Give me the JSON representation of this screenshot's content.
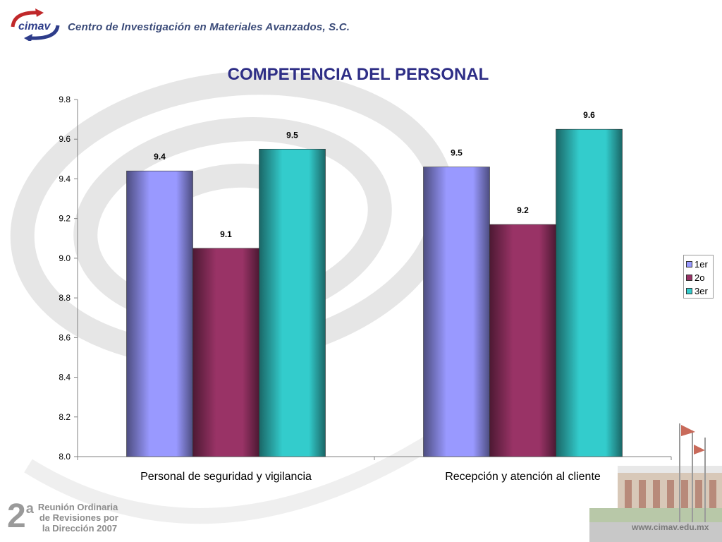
{
  "header": {
    "logo_text": "cimav",
    "org_name": "Centro de Investigación en Materiales Avanzados, S.C."
  },
  "footer": {
    "meeting_number": "2",
    "meeting_superscript": "a",
    "meeting_line1": "Reunión Ordinaria",
    "meeting_line2": "de Revisiones por",
    "meeting_line3": "la Dirección 2007",
    "website": "www.cimav.edu.mx"
  },
  "chart_data": {
    "type": "bar",
    "title": "COMPETENCIA DEL PERSONAL",
    "xlabel": "",
    "ylabel": "",
    "categories": [
      "Personal de seguridad y vigilancia",
      "Recepción y atención al cliente"
    ],
    "series": [
      {
        "name": "1er",
        "values": [
          9.44,
          9.46
        ],
        "labels": [
          "9.4",
          "9.5"
        ],
        "color": "#9999ff"
      },
      {
        "name": "2o",
        "values": [
          9.05,
          9.17
        ],
        "labels": [
          "9.1",
          "9.2"
        ],
        "color": "#993366"
      },
      {
        "name": "3er",
        "values": [
          9.55,
          9.65
        ],
        "labels": [
          "9.5",
          "9.6"
        ],
        "color": "#33cccc"
      }
    ],
    "ylim": [
      8.0,
      9.8
    ],
    "yticks": [
      "8.0",
      "8.2",
      "8.4",
      "8.6",
      "8.8",
      "9.0",
      "9.2",
      "9.4",
      "9.6",
      "9.8"
    ],
    "grid": false,
    "legend_position": "right"
  }
}
